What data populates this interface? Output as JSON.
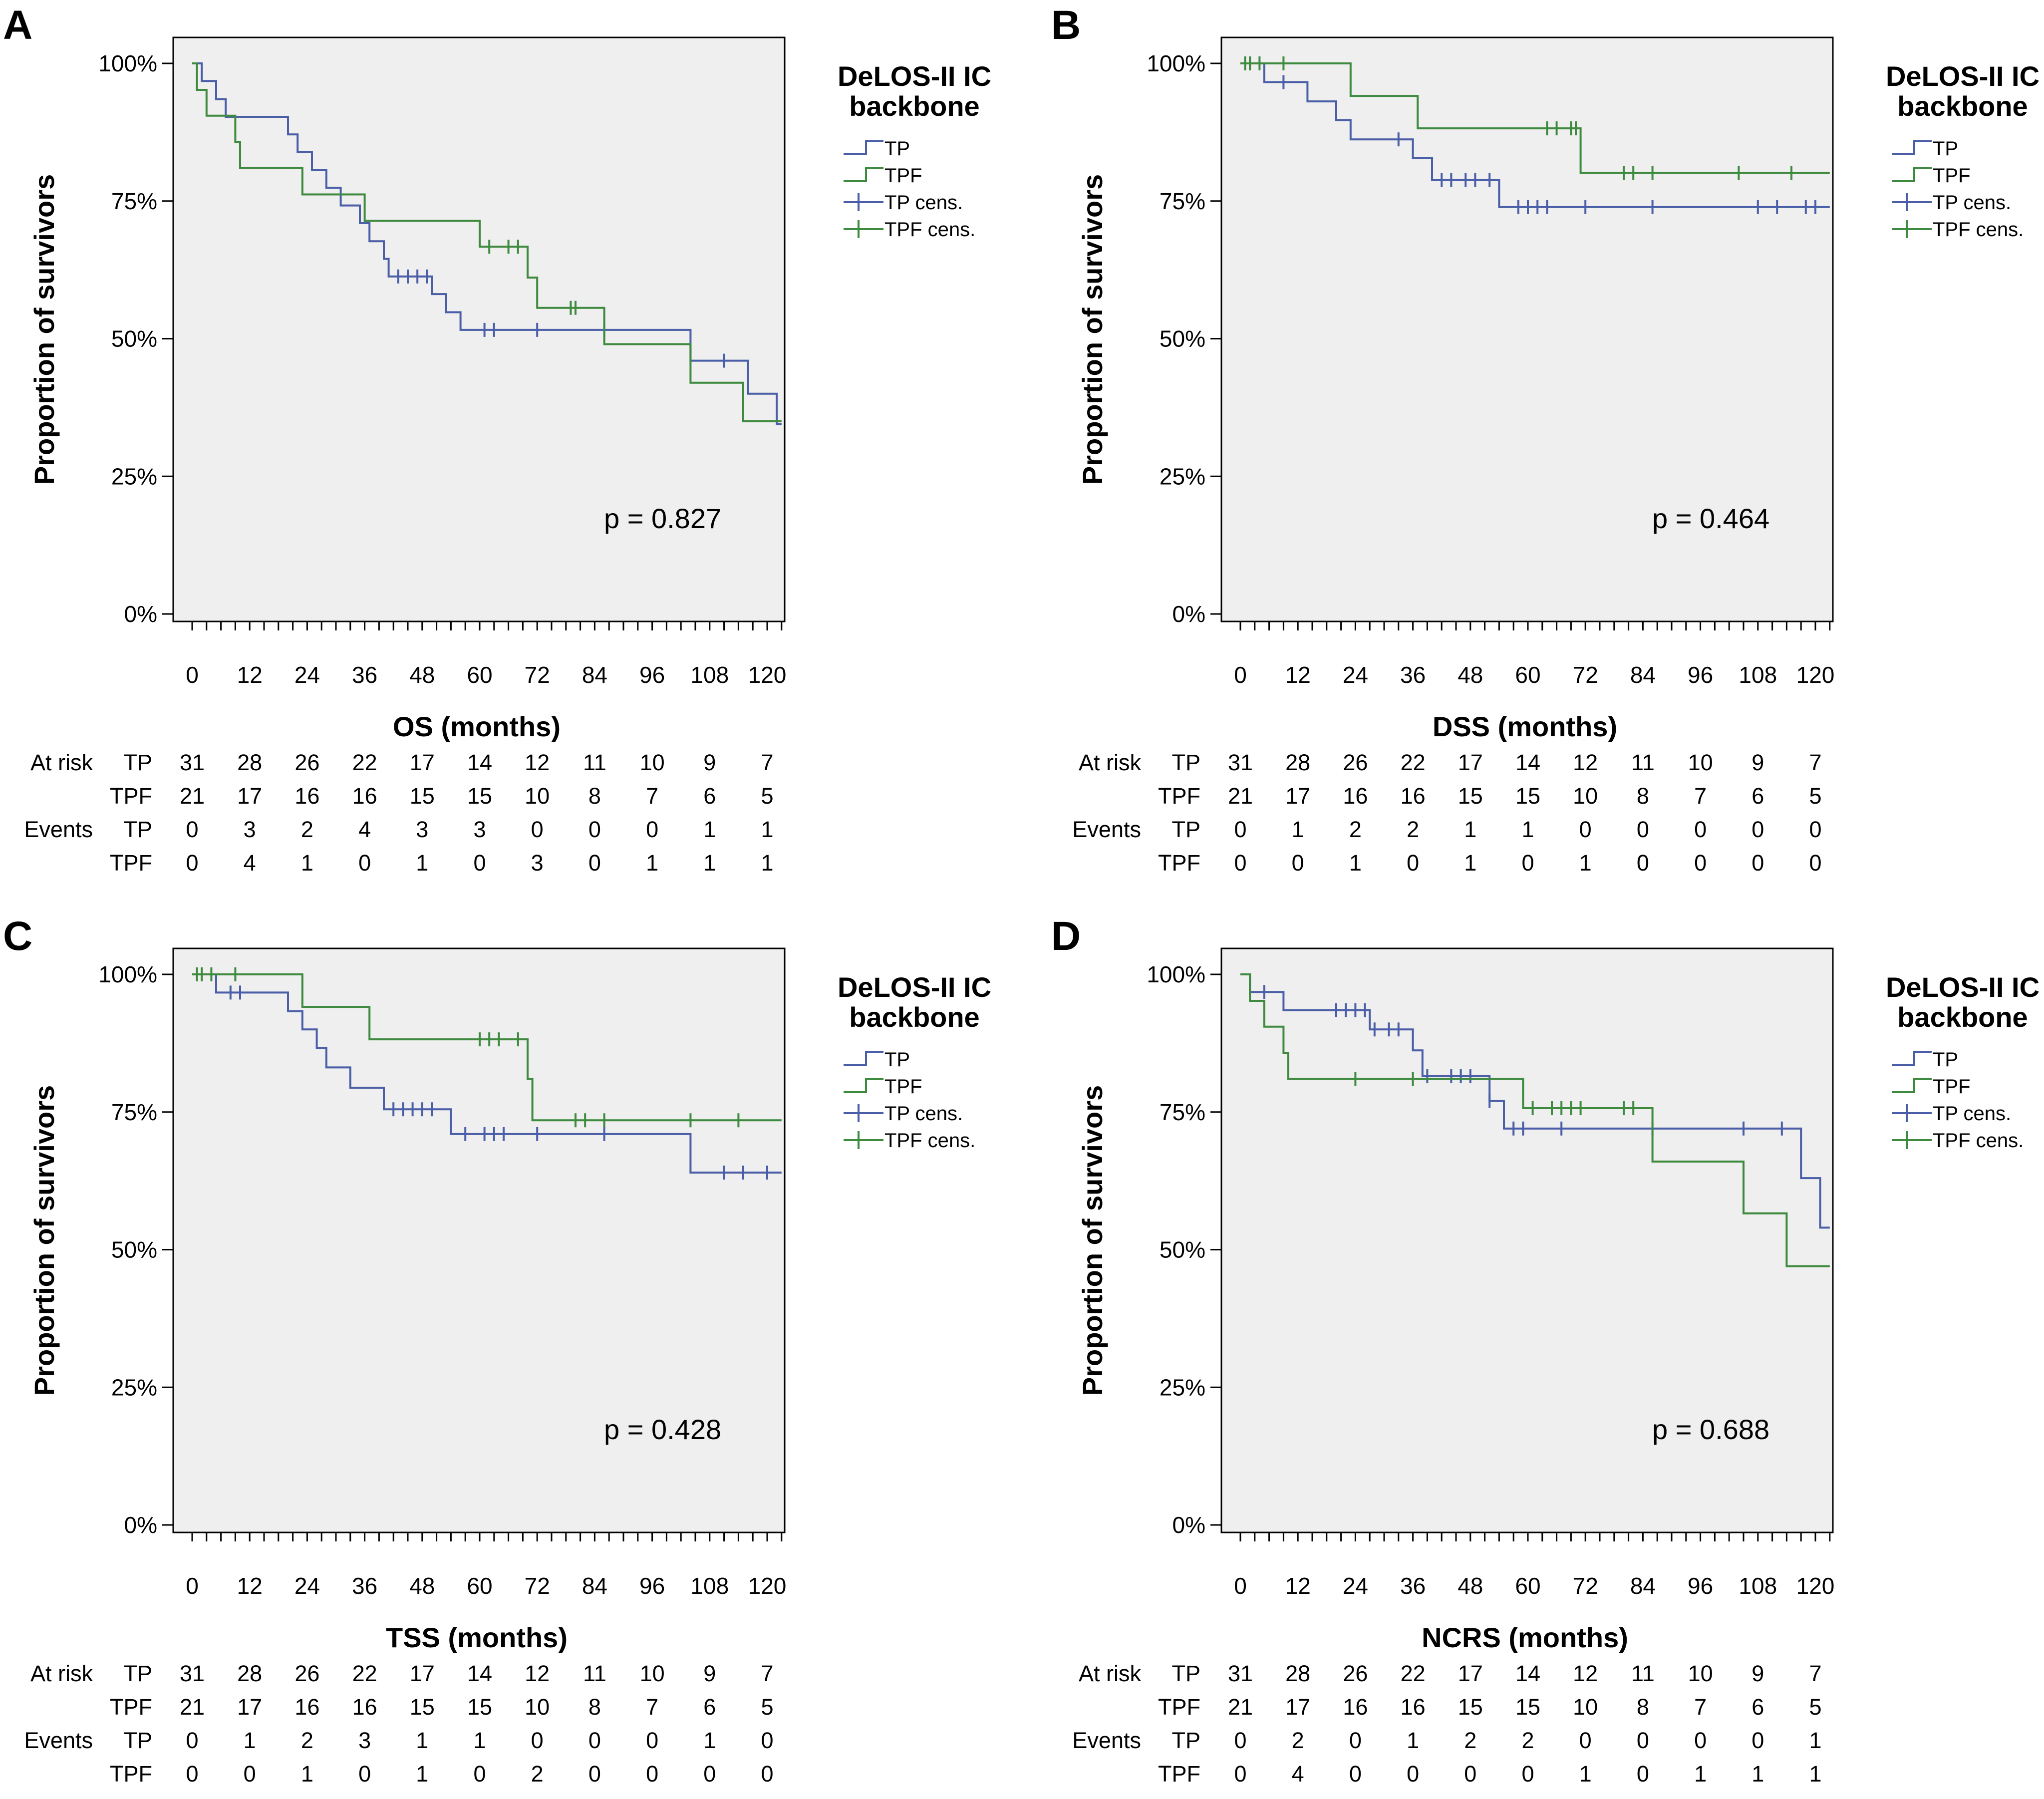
{
  "colors": {
    "tp": "#4a5fa8",
    "tpf": "#3e8a3e",
    "plot_bg": "#efefef",
    "axis": "#000000"
  },
  "shared": {
    "ylabel": "Proportion of survivors",
    "yticks": [
      "0%",
      "25%",
      "50%",
      "75%",
      "100%"
    ],
    "xticks": [
      "0",
      "12",
      "24",
      "36",
      "48",
      "60",
      "72",
      "84",
      "96",
      "108",
      "120"
    ],
    "legend_title_line1": "DeLOS-II IC",
    "legend_title_line2": "backbone",
    "legend_labels": [
      "TP",
      "TPF",
      "TP cens.",
      "TPF cens."
    ],
    "at_risk_label": "At risk",
    "events_label": "Events",
    "group_tp": "TP",
    "group_tpf": "TPF"
  },
  "chart_data": [
    {
      "panel": "A",
      "type": "line",
      "subtype": "kaplan-meier",
      "title": "",
      "xlabel": "OS (months)",
      "ylabel": "Proportion of survivors",
      "xlim": [
        0,
        123
      ],
      "ylim": [
        0,
        1
      ],
      "p_value": "p = 0.827",
      "legend_position": "outside-right",
      "series": [
        {
          "name": "TP",
          "steps": [
            [
              0,
              1.0
            ],
            [
              2,
              0.968
            ],
            [
              5,
              0.935
            ],
            [
              7,
              0.903
            ],
            [
              20,
              0.871
            ],
            [
              22,
              0.839
            ],
            [
              25,
              0.806
            ],
            [
              28,
              0.774
            ],
            [
              31,
              0.742
            ],
            [
              35,
              0.71
            ],
            [
              37,
              0.677
            ],
            [
              40,
              0.645
            ],
            [
              41,
              0.613
            ],
            [
              50,
              0.581
            ],
            [
              53,
              0.548
            ],
            [
              56,
              0.516
            ],
            [
              104,
              0.46
            ],
            [
              116,
              0.4
            ],
            [
              122,
              0.345
            ],
            [
              123,
              0.345
            ]
          ],
          "censored": [
            43,
            45,
            47,
            49,
            61,
            63,
            72,
            86,
            111
          ]
        },
        {
          "name": "TPF",
          "steps": [
            [
              0,
              1.0
            ],
            [
              1,
              0.952
            ],
            [
              3,
              0.905
            ],
            [
              9,
              0.857
            ],
            [
              10,
              0.81
            ],
            [
              23,
              0.762
            ],
            [
              36,
              0.714
            ],
            [
              60,
              0.667
            ],
            [
              70,
              0.611
            ],
            [
              72,
              0.556
            ],
            [
              86,
              0.49
            ],
            [
              104,
              0.42
            ],
            [
              115,
              0.35
            ],
            [
              123,
              0.35
            ]
          ],
          "censored": [
            62,
            66,
            68,
            79,
            80
          ]
        }
      ],
      "at_risk": {
        "TP": [
          31,
          28,
          26,
          22,
          17,
          14,
          12,
          11,
          10,
          9,
          7
        ],
        "TPF": [
          21,
          17,
          16,
          16,
          15,
          15,
          10,
          8,
          7,
          6,
          5
        ]
      },
      "events": {
        "TP": [
          0,
          3,
          2,
          4,
          3,
          3,
          0,
          0,
          0,
          1,
          1
        ],
        "TPF": [
          0,
          4,
          1,
          0,
          1,
          0,
          3,
          0,
          1,
          1,
          1
        ]
      }
    },
    {
      "panel": "B",
      "type": "line",
      "subtype": "kaplan-meier",
      "title": "",
      "xlabel": "DSS (months)",
      "ylabel": "Proportion of survivors",
      "xlim": [
        0,
        123
      ],
      "ylim": [
        0,
        1
      ],
      "p_value": "p = 0.464",
      "legend_position": "outside-right",
      "series": [
        {
          "name": "TP",
          "steps": [
            [
              0,
              1.0
            ],
            [
              5,
              0.966
            ],
            [
              14,
              0.931
            ],
            [
              20,
              0.897
            ],
            [
              23,
              0.862
            ],
            [
              36,
              0.828
            ],
            [
              40,
              0.788
            ],
            [
              54,
              0.739
            ],
            [
              123,
              0.739
            ]
          ],
          "censored": [
            2,
            9,
            33,
            42,
            44,
            47,
            49,
            52,
            58,
            60,
            62,
            64,
            72,
            86,
            108,
            112,
            118,
            120
          ]
        },
        {
          "name": "TPF",
          "steps": [
            [
              0,
              1.0
            ],
            [
              23,
              0.941
            ],
            [
              37,
              0.882
            ],
            [
              71,
              0.801
            ],
            [
              123,
              0.801
            ]
          ],
          "censored": [
            1,
            2,
            4,
            9,
            64,
            66,
            69,
            70,
            80,
            82,
            86,
            104,
            115
          ]
        }
      ],
      "at_risk": {
        "TP": [
          31,
          28,
          26,
          22,
          17,
          14,
          12,
          11,
          10,
          9,
          7
        ],
        "TPF": [
          21,
          17,
          16,
          16,
          15,
          15,
          10,
          8,
          7,
          6,
          5
        ]
      },
      "events": {
        "TP": [
          0,
          1,
          2,
          2,
          1,
          1,
          0,
          0,
          0,
          0,
          0
        ],
        "TPF": [
          0,
          0,
          1,
          0,
          1,
          0,
          1,
          0,
          0,
          0,
          0
        ]
      }
    },
    {
      "panel": "C",
      "type": "line",
      "subtype": "kaplan-meier",
      "title": "",
      "xlabel": "TSS (months)",
      "ylabel": "Proportion of survivors",
      "xlim": [
        0,
        123
      ],
      "ylim": [
        0,
        1
      ],
      "p_value": "p = 0.428",
      "legend_position": "outside-right",
      "series": [
        {
          "name": "TP",
          "steps": [
            [
              0,
              1.0
            ],
            [
              5,
              0.967
            ],
            [
              20,
              0.933
            ],
            [
              23,
              0.9
            ],
            [
              26,
              0.866
            ],
            [
              28,
              0.831
            ],
            [
              33,
              0.794
            ],
            [
              40,
              0.755
            ],
            [
              54,
              0.71
            ],
            [
              104,
              0.64
            ],
            [
              123,
              0.64
            ]
          ],
          "censored": [
            8,
            10,
            42,
            44,
            46,
            48,
            50,
            57,
            61,
            63,
            65,
            72,
            86,
            111,
            115,
            120
          ]
        },
        {
          "name": "TPF",
          "steps": [
            [
              0,
              1.0
            ],
            [
              23,
              0.941
            ],
            [
              37,
              0.882
            ],
            [
              70,
              0.81
            ],
            [
              71,
              0.735
            ],
            [
              123,
              0.735
            ]
          ],
          "censored": [
            1,
            2,
            4,
            9,
            60,
            62,
            64,
            68,
            80,
            82,
            86,
            104,
            114
          ]
        }
      ],
      "at_risk": {
        "TP": [
          31,
          28,
          26,
          22,
          17,
          14,
          12,
          11,
          10,
          9,
          7
        ],
        "TPF": [
          21,
          17,
          16,
          16,
          15,
          15,
          10,
          8,
          7,
          6,
          5
        ]
      },
      "events": {
        "TP": [
          0,
          1,
          2,
          3,
          1,
          1,
          0,
          0,
          0,
          1,
          0
        ],
        "TPF": [
          0,
          0,
          1,
          0,
          1,
          0,
          2,
          0,
          0,
          0,
          0
        ]
      }
    },
    {
      "panel": "D",
      "type": "line",
      "subtype": "kaplan-meier",
      "title": "",
      "xlabel": "NCRS (months)",
      "ylabel": "Proportion of survivors",
      "xlim": [
        0,
        123
      ],
      "ylim": [
        0,
        1
      ],
      "p_value": "p = 0.688",
      "legend_position": "outside-right",
      "series": [
        {
          "name": "TP",
          "steps": [
            [
              0,
              1.0
            ],
            [
              2,
              0.968
            ],
            [
              9,
              0.935
            ],
            [
              27,
              0.9
            ],
            [
              36,
              0.862
            ],
            [
              38,
              0.815
            ],
            [
              52,
              0.77
            ],
            [
              55,
              0.72
            ],
            [
              117,
              0.63
            ],
            [
              121,
              0.54
            ],
            [
              123,
              0.54
            ]
          ],
          "censored": [
            5,
            20,
            22,
            24,
            26,
            28,
            31,
            33,
            39,
            44,
            46,
            48,
            52,
            57,
            59,
            67,
            86,
            105,
            113
          ]
        },
        {
          "name": "TPF",
          "steps": [
            [
              0,
              1.0
            ],
            [
              2,
              0.952
            ],
            [
              5,
              0.905
            ],
            [
              9,
              0.857
            ],
            [
              10,
              0.81
            ],
            [
              59,
              0.757
            ],
            [
              86,
              0.66
            ],
            [
              105,
              0.566
            ],
            [
              114,
              0.47
            ],
            [
              123,
              0.47
            ]
          ],
          "censored": [
            24,
            36,
            61,
            65,
            67,
            69,
            71,
            80,
            82
          ]
        }
      ],
      "at_risk": {
        "TP": [
          31,
          28,
          26,
          22,
          17,
          14,
          12,
          11,
          10,
          9,
          7
        ],
        "TPF": [
          21,
          17,
          16,
          16,
          15,
          15,
          10,
          8,
          7,
          6,
          5
        ]
      },
      "events": {
        "TP": [
          0,
          2,
          0,
          1,
          2,
          2,
          0,
          0,
          0,
          0,
          1
        ],
        "TPF": [
          0,
          4,
          0,
          0,
          0,
          0,
          1,
          0,
          1,
          1,
          1
        ]
      }
    }
  ]
}
